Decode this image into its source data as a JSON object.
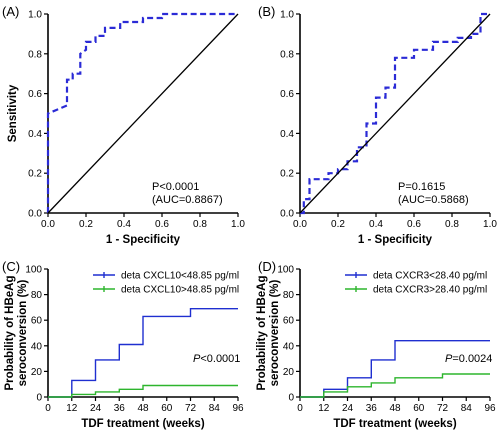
{
  "colors": {
    "roc": "#2b2bd6",
    "blue": "#1f2fd0",
    "green": "#2db52d",
    "axis": "#000000"
  },
  "chart_data": [
    {
      "type": "line",
      "panel": "(A)",
      "xlabel": "1 - Specificity",
      "ylabel": "Sensitivity",
      "xlim": [
        0,
        1
      ],
      "ylim": [
        0,
        1
      ],
      "xticks": [
        "0.0",
        "0.2",
        "0.4",
        "0.6",
        "0.8",
        "1.0"
      ],
      "yticks": [
        "0.0",
        "0.2",
        "0.4",
        "0.6",
        "0.8",
        "1.0"
      ],
      "annotation": [
        "P<0.0001",
        "(AUC=0.8867)"
      ],
      "series": [
        {
          "style": "dashed-step",
          "x": [
            0,
            0,
            0.1,
            0.1,
            0.13,
            0.13,
            0.17,
            0.17,
            0.2,
            0.2,
            0.25,
            0.25,
            0.3,
            0.3,
            0.38,
            0.38,
            0.5,
            0.5,
            0.6,
            0.6,
            0.78,
            1.0
          ],
          "y": [
            0,
            0.5,
            0.54,
            0.67,
            0.67,
            0.7,
            0.7,
            0.8,
            0.82,
            0.86,
            0.86,
            0.89,
            0.89,
            0.93,
            0.93,
            0.96,
            0.96,
            0.98,
            0.98,
            1.0,
            1.0,
            1.0
          ]
        },
        {
          "style": "reference",
          "x": [
            0,
            1
          ],
          "y": [
            0,
            1
          ]
        }
      ]
    },
    {
      "type": "line",
      "panel": "(B)",
      "xlabel": "1 - Specificity",
      "ylabel": "",
      "xlim": [
        0,
        1
      ],
      "ylim": [
        0,
        1
      ],
      "xticks": [
        "0.0",
        "0.2",
        "0.4",
        "0.6",
        "0.8",
        "1.0"
      ],
      "yticks": [
        "0.0",
        "0.2",
        "0.4",
        "0.6",
        "0.8",
        "1.0"
      ],
      "annotation": [
        "P=0.1615",
        "(AUC=0.5868)"
      ],
      "series": [
        {
          "style": "dashed-step",
          "x": [
            0,
            0.02,
            0.02,
            0.05,
            0.05,
            0.15,
            0.15,
            0.2,
            0.2,
            0.25,
            0.25,
            0.3,
            0.3,
            0.35,
            0.35,
            0.4,
            0.4,
            0.45,
            0.45,
            0.5,
            0.5,
            0.6,
            0.6,
            0.7,
            0.7,
            0.83,
            0.83,
            0.9,
            0.9,
            0.95,
            0.95,
            1.0
          ],
          "y": [
            0,
            0,
            0.07,
            0.07,
            0.17,
            0.17,
            0.2,
            0.2,
            0.22,
            0.22,
            0.26,
            0.26,
            0.33,
            0.33,
            0.45,
            0.45,
            0.58,
            0.58,
            0.63,
            0.63,
            0.78,
            0.78,
            0.82,
            0.82,
            0.86,
            0.86,
            0.88,
            0.88,
            0.9,
            0.9,
            1.0,
            1.0
          ]
        },
        {
          "style": "reference",
          "x": [
            0,
            1
          ],
          "y": [
            0,
            1
          ]
        }
      ]
    },
    {
      "type": "line",
      "panel": "(C)",
      "xlabel": "TDF treatment (weeks)",
      "ylabel": [
        "Probability of HBeAg",
        "seroconversion (%)"
      ],
      "xlim": [
        0,
        96
      ],
      "ylim": [
        0,
        100
      ],
      "xticks": [
        "0",
        "12",
        "24",
        "36",
        "48",
        "60",
        "72",
        "84",
        "96"
      ],
      "yticks": [
        "0",
        "20",
        "40",
        "60",
        "80",
        "100"
      ],
      "annotation": [
        "P",
        "<0.0001"
      ],
      "series": [
        {
          "name": "deta CXCL10<48.85 pg/ml",
          "color": "blue",
          "x": [
            0,
            12,
            12,
            24,
            24,
            36,
            36,
            48,
            48,
            72,
            72,
            96
          ],
          "y": [
            0,
            0,
            13,
            13,
            29,
            29,
            41,
            41,
            63,
            63,
            69,
            69
          ]
        },
        {
          "name": "deta CXCL10>48.85 pg/ml",
          "color": "green",
          "x": [
            0,
            12,
            12,
            24,
            24,
            36,
            36,
            48,
            48,
            96
          ],
          "y": [
            0,
            0,
            2,
            2,
            4,
            4,
            6,
            6,
            9,
            9
          ]
        }
      ]
    },
    {
      "type": "line",
      "panel": "(D)",
      "xlabel": "TDF treatment (weeks)",
      "ylabel": [
        "Probability of HBeAg",
        "seroconversion (%)"
      ],
      "xlim": [
        0,
        96
      ],
      "ylim": [
        0,
        100
      ],
      "xticks": [
        "0",
        "12",
        "24",
        "36",
        "48",
        "60",
        "72",
        "84",
        "96"
      ],
      "yticks": [
        "0",
        "20",
        "40",
        "60",
        "80",
        "100"
      ],
      "annotation": [
        "P",
        "=0.0024"
      ],
      "series": [
        {
          "name": "deta CXCR3<28.40 pg/ml",
          "color": "blue",
          "x": [
            0,
            12,
            12,
            24,
            24,
            36,
            36,
            48,
            48,
            96
          ],
          "y": [
            0,
            0,
            6,
            6,
            15,
            15,
            29,
            29,
            44,
            44
          ]
        },
        {
          "name": "deta CXCR3>28.40 pg/ml",
          "color": "green",
          "x": [
            0,
            12,
            12,
            24,
            24,
            36,
            36,
            48,
            48,
            72,
            72,
            96
          ],
          "y": [
            0,
            0,
            4,
            4,
            8,
            8,
            11,
            11,
            15,
            15,
            18,
            18
          ]
        }
      ]
    }
  ]
}
